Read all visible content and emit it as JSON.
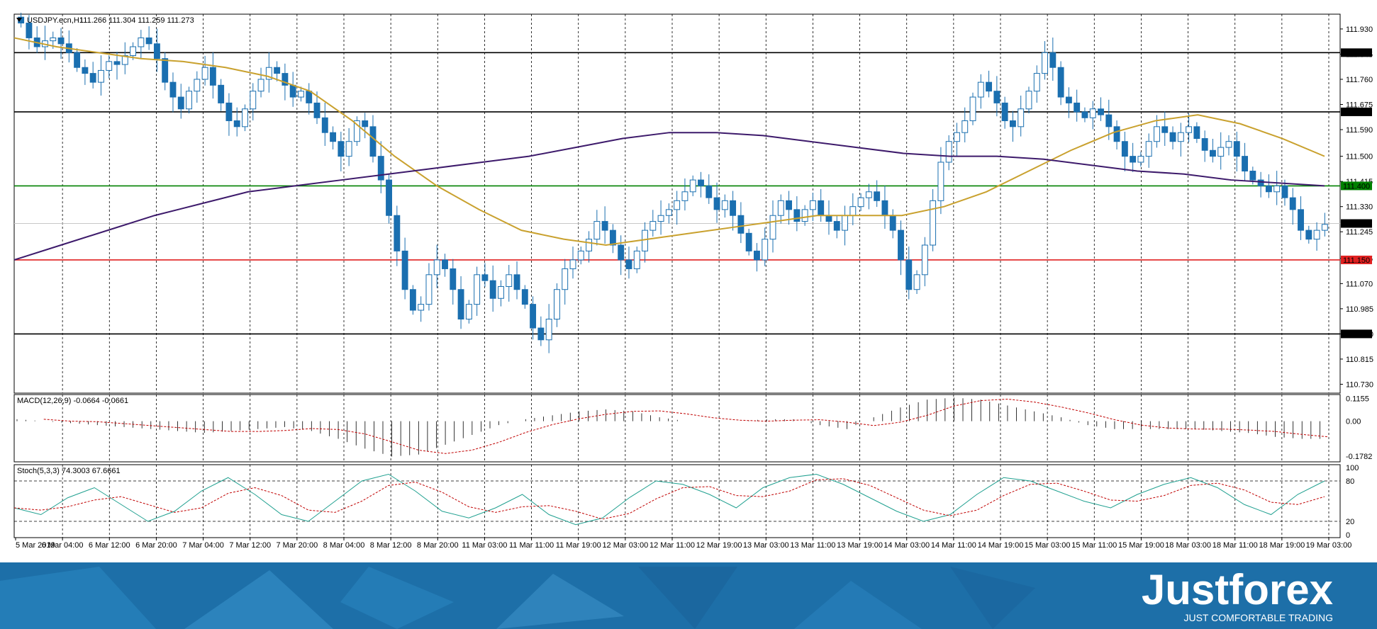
{
  "header": {
    "symbol": "USDJPY.ecn,H1",
    "ohlc": "111.266 111.304 111.259 111.273"
  },
  "macd_header": "MACD(12,26,9) -0.0664 -0.0661",
  "stoch_header": "Stoch(5,3,3) 74.3003 67.6661",
  "brand": {
    "name": "Justforex",
    "tagline": "JUST COMFORTABLE TRADING"
  },
  "colors": {
    "candle": "#1a6fb0",
    "ma_fast": "#c9a12e",
    "ma_slow": "#3d1a6b",
    "level_black": "#000000",
    "level_green": "#008000",
    "level_red": "#e02020",
    "current_price": "#c8c8c8",
    "macd_signal": "#c00000",
    "stoch_main": "#20a090",
    "stoch_signal": "#c00000",
    "banner": "#1d6fa8"
  },
  "chart_data": [
    {
      "type": "line",
      "title": "USDJPY.ecn,H1",
      "ylim": [
        110.7,
        111.98
      ],
      "y_ticks": [
        "111.930",
        "111.845",
        "111.760",
        "111.675",
        "111.590",
        "111.500",
        "111.415",
        "111.330",
        "111.245",
        "111.155",
        "111.070",
        "110.985",
        "110.900",
        "110.815",
        "110.730"
      ],
      "x_ticks": [
        "5 Mar 2019",
        "6 Mar 04:00",
        "6 Mar 12:00",
        "6 Mar 20:00",
        "7 Mar 04:00",
        "7 Mar 12:00",
        "7 Mar 20:00",
        "8 Mar 04:00",
        "8 Mar 12:00",
        "8 Mar 20:00",
        "11 Mar 03:00",
        "11 Mar 11:00",
        "11 Mar 19:00",
        "12 Mar 03:00",
        "12 Mar 11:00",
        "12 Mar 19:00",
        "13 Mar 03:00",
        "13 Mar 11:00",
        "13 Mar 19:00",
        "14 Mar 03:00",
        "14 Mar 11:00",
        "14 Mar 19:00",
        "15 Mar 03:00",
        "15 Mar 11:00",
        "15 Mar 19:00",
        "18 Mar 03:00",
        "18 Mar 11:00",
        "18 Mar 19:00",
        "19 Mar 03:00"
      ],
      "price_levels": [
        {
          "label": "111.850",
          "value": 111.85,
          "color": "black"
        },
        {
          "label": "111.650",
          "value": 111.65,
          "color": "black"
        },
        {
          "label": "111.400",
          "value": 111.4,
          "color": "green"
        },
        {
          "label": "111.150",
          "value": 111.15,
          "color": "red"
        },
        {
          "label": "110.900",
          "value": 110.9,
          "color": "black"
        }
      ],
      "current_price": {
        "label": "111.273",
        "value": 111.273
      },
      "close_series": [
        111.95,
        111.9,
        111.87,
        111.89,
        111.9,
        111.88,
        111.85,
        111.8,
        111.78,
        111.75,
        111.79,
        111.82,
        111.81,
        111.84,
        111.87,
        111.9,
        111.88,
        111.83,
        111.75,
        111.7,
        111.66,
        111.72,
        111.76,
        111.8,
        111.74,
        111.68,
        111.62,
        111.6,
        111.66,
        111.72,
        111.76,
        111.8,
        111.78,
        111.74,
        111.7,
        111.72,
        111.68,
        111.63,
        111.58,
        111.55,
        111.5,
        111.55,
        111.62,
        111.6,
        111.5,
        111.42,
        111.3,
        111.18,
        111.05,
        110.98,
        111.0,
        111.1,
        111.15,
        111.12,
        111.05,
        110.95,
        111.0,
        111.1,
        111.08,
        111.02,
        111.06,
        111.1,
        111.05,
        111.0,
        110.92,
        110.88,
        110.95,
        111.05,
        111.12,
        111.15,
        111.18,
        111.22,
        111.28,
        111.25,
        111.2,
        111.15,
        111.12,
        111.18,
        111.25,
        111.28,
        111.3,
        111.32,
        111.35,
        111.38,
        111.42,
        111.4,
        111.36,
        111.32,
        111.35,
        111.3,
        111.24,
        111.18,
        111.15,
        111.22,
        111.3,
        111.35,
        111.32,
        111.28,
        111.32,
        111.35,
        111.3,
        111.28,
        111.25,
        111.3,
        111.33,
        111.36,
        111.38,
        111.35,
        111.3,
        111.25,
        111.15,
        111.05,
        111.1,
        111.2,
        111.35,
        111.48,
        111.55,
        111.58,
        111.62,
        111.7,
        111.75,
        111.72,
        111.68,
        111.62,
        111.6,
        111.66,
        111.72,
        111.78,
        111.85,
        111.8,
        111.7,
        111.68,
        111.65,
        111.63,
        111.66,
        111.64,
        111.6,
        111.55,
        111.5,
        111.48,
        111.5,
        111.55,
        111.6,
        111.58,
        111.55,
        111.58,
        111.6,
        111.56,
        111.52,
        111.5,
        111.53,
        111.55,
        111.5,
        111.45,
        111.42,
        111.4,
        111.38,
        111.4,
        111.36,
        111.32,
        111.25,
        111.22,
        111.25,
        111.27
      ],
      "ma_fast_series": [
        111.9,
        111.87,
        111.85,
        111.83,
        111.82,
        111.8,
        111.77,
        111.72,
        111.62,
        111.5,
        111.4,
        111.32,
        111.25,
        111.22,
        111.2,
        111.22,
        111.24,
        111.26,
        111.28,
        111.3,
        111.3,
        111.3,
        111.33,
        111.38,
        111.45,
        111.52,
        111.58,
        111.62,
        111.64,
        111.61,
        111.56,
        111.5
      ],
      "ma_slow_series": [
        111.15,
        111.2,
        111.25,
        111.3,
        111.34,
        111.38,
        111.4,
        111.42,
        111.44,
        111.46,
        111.48,
        111.5,
        111.53,
        111.56,
        111.58,
        111.58,
        111.57,
        111.55,
        111.53,
        111.51,
        111.5,
        111.5,
        111.49,
        111.47,
        111.45,
        111.44,
        111.42,
        111.41,
        111.4
      ]
    },
    {
      "type": "bar",
      "title": "MACD(12,26,9) -0.0664 -0.0661",
      "ylim": [
        -0.2,
        0.125
      ],
      "y_ticks": [
        "0.1155",
        "0.00",
        "-0.1782"
      ],
      "values": [
        0.01,
        0.0,
        -0.01,
        -0.02,
        -0.03,
        -0.04,
        -0.05,
        -0.06,
        -0.05,
        -0.04,
        -0.03,
        -0.05,
        -0.09,
        -0.14,
        -0.18,
        -0.17,
        -0.12,
        -0.07,
        -0.02,
        0.01,
        0.03,
        0.05,
        0.06,
        0.05,
        0.02,
        0.0,
        0.0,
        0.0,
        0.01,
        0.01,
        -0.02,
        -0.04,
        0.02,
        0.07,
        0.11,
        0.12,
        0.11,
        0.08,
        0.05,
        0.02,
        -0.02,
        -0.04,
        -0.04,
        -0.04,
        -0.04,
        -0.05,
        -0.06,
        -0.08,
        -0.09
      ]
    },
    {
      "type": "line",
      "title": "Stoch(5,3,3) 74.3003 67.6661",
      "ylim": [
        0,
        100
      ],
      "y_ticks": [
        "100",
        "80",
        "20",
        "0"
      ],
      "values": [
        40,
        30,
        55,
        70,
        45,
        20,
        35,
        65,
        85,
        60,
        30,
        20,
        50,
        80,
        90,
        65,
        35,
        25,
        40,
        60,
        30,
        15,
        25,
        55,
        80,
        75,
        60,
        40,
        70,
        85,
        90,
        75,
        55,
        35,
        20,
        30,
        60,
        85,
        80,
        65,
        50,
        40,
        60,
        75,
        85,
        70,
        45,
        30,
        60,
        80
      ]
    }
  ]
}
